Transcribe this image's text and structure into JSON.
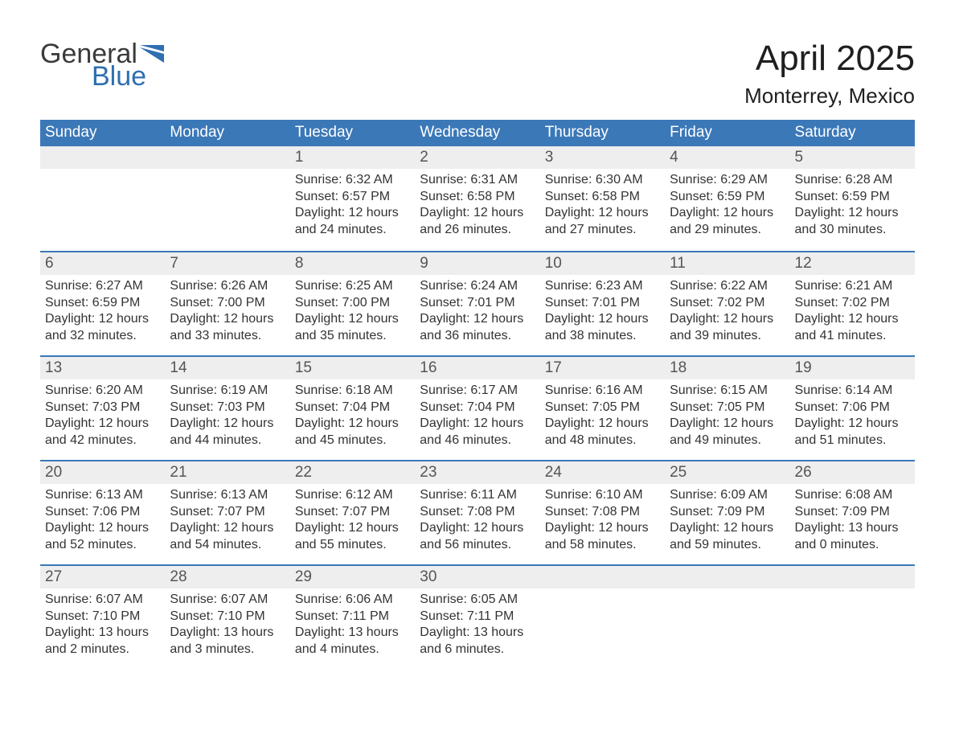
{
  "brand": {
    "line1": "General",
    "line2": "Blue",
    "logo_color": "#2f6fb0"
  },
  "title": "April 2025",
  "location": "Monterrey, Mexico",
  "colors": {
    "header_bg": "#3b78b8",
    "header_text": "#ffffff",
    "daynum_bg": "#eeeeee",
    "row_border": "#3b78b8",
    "body_text": "#333333"
  },
  "weekdays": [
    "Sunday",
    "Monday",
    "Tuesday",
    "Wednesday",
    "Thursday",
    "Friday",
    "Saturday"
  ],
  "weeks": [
    [
      null,
      null,
      {
        "n": "1",
        "sunrise": "6:32 AM",
        "sunset": "6:57 PM",
        "daylight": "12 hours and 24 minutes."
      },
      {
        "n": "2",
        "sunrise": "6:31 AM",
        "sunset": "6:58 PM",
        "daylight": "12 hours and 26 minutes."
      },
      {
        "n": "3",
        "sunrise": "6:30 AM",
        "sunset": "6:58 PM",
        "daylight": "12 hours and 27 minutes."
      },
      {
        "n": "4",
        "sunrise": "6:29 AM",
        "sunset": "6:59 PM",
        "daylight": "12 hours and 29 minutes."
      },
      {
        "n": "5",
        "sunrise": "6:28 AM",
        "sunset": "6:59 PM",
        "daylight": "12 hours and 30 minutes."
      }
    ],
    [
      {
        "n": "6",
        "sunrise": "6:27 AM",
        "sunset": "6:59 PM",
        "daylight": "12 hours and 32 minutes."
      },
      {
        "n": "7",
        "sunrise": "6:26 AM",
        "sunset": "7:00 PM",
        "daylight": "12 hours and 33 minutes."
      },
      {
        "n": "8",
        "sunrise": "6:25 AM",
        "sunset": "7:00 PM",
        "daylight": "12 hours and 35 minutes."
      },
      {
        "n": "9",
        "sunrise": "6:24 AM",
        "sunset": "7:01 PM",
        "daylight": "12 hours and 36 minutes."
      },
      {
        "n": "10",
        "sunrise": "6:23 AM",
        "sunset": "7:01 PM",
        "daylight": "12 hours and 38 minutes."
      },
      {
        "n": "11",
        "sunrise": "6:22 AM",
        "sunset": "7:02 PM",
        "daylight": "12 hours and 39 minutes."
      },
      {
        "n": "12",
        "sunrise": "6:21 AM",
        "sunset": "7:02 PM",
        "daylight": "12 hours and 41 minutes."
      }
    ],
    [
      {
        "n": "13",
        "sunrise": "6:20 AM",
        "sunset": "7:03 PM",
        "daylight": "12 hours and 42 minutes."
      },
      {
        "n": "14",
        "sunrise": "6:19 AM",
        "sunset": "7:03 PM",
        "daylight": "12 hours and 44 minutes."
      },
      {
        "n": "15",
        "sunrise": "6:18 AM",
        "sunset": "7:04 PM",
        "daylight": "12 hours and 45 minutes."
      },
      {
        "n": "16",
        "sunrise": "6:17 AM",
        "sunset": "7:04 PM",
        "daylight": "12 hours and 46 minutes."
      },
      {
        "n": "17",
        "sunrise": "6:16 AM",
        "sunset": "7:05 PM",
        "daylight": "12 hours and 48 minutes."
      },
      {
        "n": "18",
        "sunrise": "6:15 AM",
        "sunset": "7:05 PM",
        "daylight": "12 hours and 49 minutes."
      },
      {
        "n": "19",
        "sunrise": "6:14 AM",
        "sunset": "7:06 PM",
        "daylight": "12 hours and 51 minutes."
      }
    ],
    [
      {
        "n": "20",
        "sunrise": "6:13 AM",
        "sunset": "7:06 PM",
        "daylight": "12 hours and 52 minutes."
      },
      {
        "n": "21",
        "sunrise": "6:13 AM",
        "sunset": "7:07 PM",
        "daylight": "12 hours and 54 minutes."
      },
      {
        "n": "22",
        "sunrise": "6:12 AM",
        "sunset": "7:07 PM",
        "daylight": "12 hours and 55 minutes."
      },
      {
        "n": "23",
        "sunrise": "6:11 AM",
        "sunset": "7:08 PM",
        "daylight": "12 hours and 56 minutes."
      },
      {
        "n": "24",
        "sunrise": "6:10 AM",
        "sunset": "7:08 PM",
        "daylight": "12 hours and 58 minutes."
      },
      {
        "n": "25",
        "sunrise": "6:09 AM",
        "sunset": "7:09 PM",
        "daylight": "12 hours and 59 minutes."
      },
      {
        "n": "26",
        "sunrise": "6:08 AM",
        "sunset": "7:09 PM",
        "daylight": "13 hours and 0 minutes."
      }
    ],
    [
      {
        "n": "27",
        "sunrise": "6:07 AM",
        "sunset": "7:10 PM",
        "daylight": "13 hours and 2 minutes."
      },
      {
        "n": "28",
        "sunrise": "6:07 AM",
        "sunset": "7:10 PM",
        "daylight": "13 hours and 3 minutes."
      },
      {
        "n": "29",
        "sunrise": "6:06 AM",
        "sunset": "7:11 PM",
        "daylight": "13 hours and 4 minutes."
      },
      {
        "n": "30",
        "sunrise": "6:05 AM",
        "sunset": "7:11 PM",
        "daylight": "13 hours and 6 minutes."
      },
      null,
      null,
      null
    ]
  ],
  "labels": {
    "sunrise": "Sunrise:",
    "sunset": "Sunset:",
    "daylight": "Daylight:"
  }
}
